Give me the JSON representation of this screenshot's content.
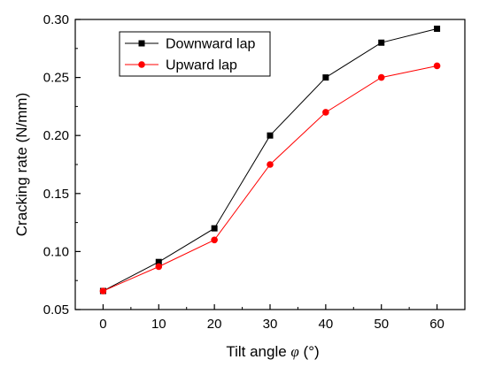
{
  "chart_data": {
    "type": "line",
    "x": [
      0,
      10,
      20,
      30,
      40,
      50,
      60
    ],
    "series": [
      {
        "name": "Downward lap",
        "values": [
          0.066,
          0.091,
          0.12,
          0.2,
          0.25,
          0.28,
          0.292
        ],
        "color": "#000000",
        "marker": "square"
      },
      {
        "name": "Upward lap",
        "values": [
          0.066,
          0.087,
          0.11,
          0.175,
          0.22,
          0.25,
          0.26
        ],
        "color": "#ff0000",
        "marker": "circle"
      }
    ],
    "xlabel_prefix": "Tilt angle ",
    "xlabel_symbol": "φ",
    "xlabel_unit": " (°)",
    "ylabel": "Cracking rate (N/mm)",
    "xlim": [
      -5,
      65
    ],
    "ylim": [
      0.05,
      0.3
    ],
    "xticks": [
      "0",
      "10",
      "20",
      "30",
      "40",
      "50",
      "60"
    ],
    "yticks": [
      "0.05",
      "0.10",
      "0.15",
      "0.20",
      "0.25",
      "0.30"
    ],
    "grid": false,
    "legend_position": "top-left"
  }
}
